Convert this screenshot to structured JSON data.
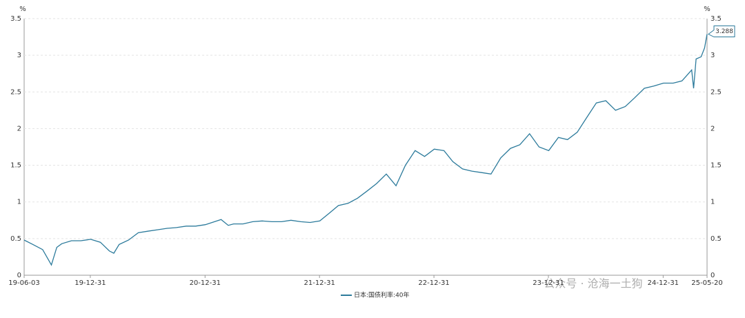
{
  "chart_data": {
    "type": "line",
    "unit": "%",
    "x": [
      "19-06-03",
      "19-07-01",
      "19-08-01",
      "19-08-29",
      "19-09-15",
      "19-10-01",
      "19-11-01",
      "19-12-01",
      "20-01-01",
      "20-02-01",
      "20-03-01",
      "20-03-15",
      "20-04-01",
      "20-05-01",
      "20-06-01",
      "20-07-01",
      "20-08-01",
      "20-09-01",
      "20-10-01",
      "20-11-01",
      "20-12-01",
      "21-01-01",
      "21-02-20",
      "21-03-15",
      "21-04-01",
      "21-05-01",
      "21-06-01",
      "21-07-01",
      "21-08-01",
      "21-09-01",
      "21-10-01",
      "21-11-01",
      "21-12-01",
      "22-01-01",
      "22-02-01",
      "22-03-01",
      "22-04-01",
      "22-05-01",
      "22-06-01",
      "22-07-01",
      "22-08-01",
      "22-09-01",
      "22-10-01",
      "22-11-01",
      "22-12-01",
      "23-01-01",
      "23-02-01",
      "23-03-01",
      "23-04-01",
      "23-05-01",
      "23-06-01",
      "23-07-01",
      "23-08-01",
      "23-09-01",
      "23-10-01",
      "23-11-01",
      "23-12-01",
      "24-01-01",
      "24-02-01",
      "24-03-01",
      "24-04-01",
      "24-05-01",
      "24-06-01",
      "24-07-01",
      "24-08-01",
      "24-09-01",
      "24-10-01",
      "24-11-01",
      "24-12-01",
      "25-01-01",
      "25-02-01",
      "25-03-01",
      "25-04-01",
      "25-04-07",
      "25-04-15",
      "25-05-01",
      "25-05-12",
      "25-05-20"
    ],
    "series": [
      {
        "name": "日本:国债利率:40年",
        "color": "#2b7a9b",
        "values": [
          0.48,
          0.42,
          0.35,
          0.14,
          0.38,
          0.43,
          0.47,
          0.47,
          0.49,
          0.45,
          0.33,
          0.3,
          0.42,
          0.48,
          0.58,
          0.6,
          0.62,
          0.64,
          0.65,
          0.67,
          0.67,
          0.69,
          0.76,
          0.68,
          0.7,
          0.7,
          0.73,
          0.74,
          0.73,
          0.73,
          0.75,
          0.73,
          0.72,
          0.74,
          0.85,
          0.95,
          0.98,
          1.05,
          1.15,
          1.25,
          1.38,
          1.22,
          1.5,
          1.7,
          1.62,
          1.72,
          1.7,
          1.55,
          1.45,
          1.42,
          1.4,
          1.38,
          1.6,
          1.73,
          1.78,
          1.93,
          1.75,
          1.7,
          1.88,
          1.85,
          1.95,
          2.15,
          2.35,
          2.38,
          2.25,
          2.3,
          2.42,
          2.55,
          2.58,
          2.62,
          2.62,
          2.65,
          2.8,
          2.55,
          2.95,
          2.98,
          3.1,
          3.288
        ]
      }
    ],
    "xticks": [
      "19-06-03",
      "19-12-31",
      "20-12-31",
      "21-12-31",
      "22-12-31",
      "23-12-31",
      "24-12-31",
      "25-05-20"
    ],
    "ylim": [
      0,
      3.5
    ],
    "yticks": [
      0,
      0.5,
      1,
      1.5,
      2,
      2.5,
      3,
      3.5
    ],
    "grid": true,
    "watermark": "公众号 · 沧海一土狗"
  }
}
